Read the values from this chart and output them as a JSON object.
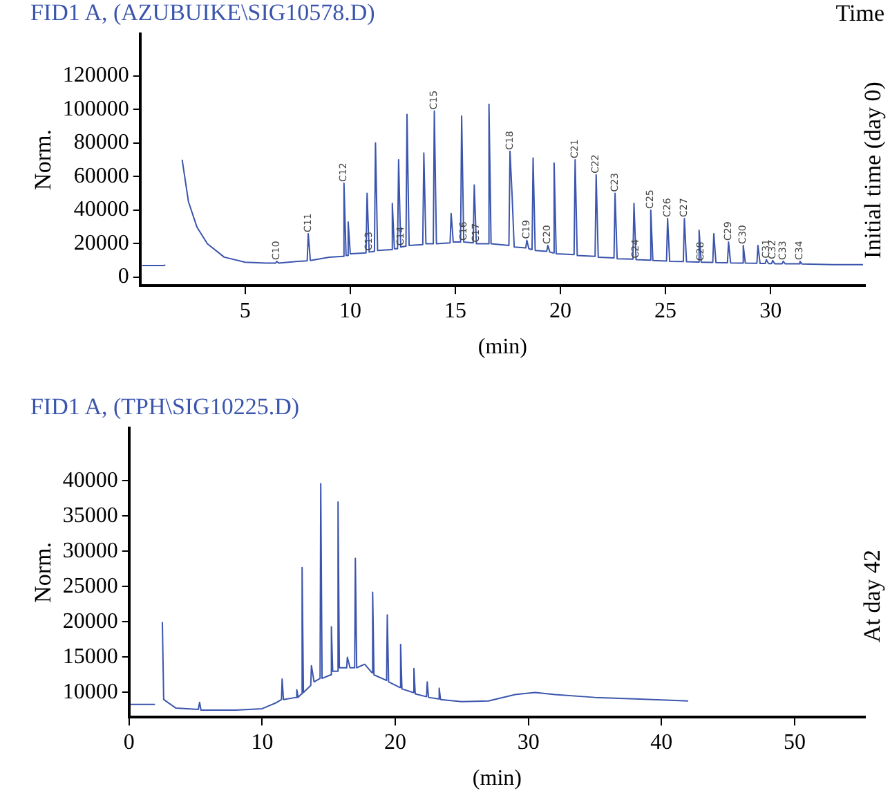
{
  "chart_data": [
    {
      "type": "line",
      "title": "FID1 A, (AZUBUIKE\\SIG10578.D)",
      "xlabel": "(min)",
      "ylabel": "Norm.",
      "xlim": [
        0,
        34.5
      ],
      "ylim": [
        -5000,
        145000
      ],
      "xticks": [
        5,
        10,
        15,
        20,
        25,
        30
      ],
      "yticks": [
        0,
        20000,
        40000,
        60000,
        80000,
        100000,
        120000
      ],
      "grid": false,
      "legend": false,
      "x": [
        0.1,
        1.1,
        1.2,
        1.3,
        1.9,
        2.0,
        2.3,
        2.7,
        3.2,
        4,
        5,
        6,
        6.45,
        6.5,
        6.6,
        7.5,
        7.95,
        8.0,
        8.1,
        9.0,
        9.65,
        9.7,
        9.8,
        9.85,
        9.9,
        10.0,
        10.75,
        10.8,
        10.9,
        11.15,
        11.2,
        11.3,
        11.95,
        12.0,
        12.1,
        12.25,
        12.3,
        12.4,
        12.65,
        12.7,
        12.8,
        13.45,
        13.5,
        13.6,
        13.95,
        14.0,
        14.1,
        14.75,
        14.8,
        14.9,
        15.25,
        15.3,
        15.4,
        15.85,
        15.9,
        16.0,
        16.55,
        16.6,
        16.7,
        17.55,
        17.6,
        17.7,
        17.8,
        18.35,
        18.4,
        18.5,
        18.65,
        18.7,
        18.8,
        19.35,
        19.4,
        19.5,
        19.65,
        19.7,
        19.8,
        20.65,
        20.7,
        20.8,
        21.65,
        21.7,
        21.8,
        22.55,
        22.6,
        22.7,
        23.45,
        23.5,
        23.6,
        24.25,
        24.3,
        24.4,
        25.05,
        25.1,
        25.2,
        25.85,
        25.9,
        26.0,
        26.55,
        26.6,
        26.7,
        27.25,
        27.3,
        27.4,
        27.95,
        28.0,
        28.1,
        28.65,
        28.7,
        28.8,
        29.35,
        29.4,
        29.5,
        29.75,
        29.8,
        29.9,
        30.05,
        30.1,
        30.2,
        30.55,
        30.6,
        30.7,
        31.35,
        31.4,
        31.5,
        33,
        34.4
      ],
      "series": [
        {
          "color": "#3b55ad",
          "values": [
            7000,
            7000,
            7200,
            null,
            null,
            70000,
            45000,
            30000,
            20000,
            12000,
            9000,
            8500,
            8500,
            9500,
            8500,
            9500,
            9800,
            26000,
            10000,
            12000,
            12500,
            56000,
            13000,
            13000,
            33000,
            14000,
            14500,
            50000,
            15000,
            15500,
            80000,
            16000,
            16500,
            44000,
            17000,
            17000,
            70000,
            18000,
            18500,
            97000,
            19000,
            19500,
            74000,
            20000,
            20000,
            99000,
            20000,
            20500,
            38000,
            21000,
            21000,
            96000,
            21000,
            20500,
            55000,
            20000,
            20000,
            103000,
            20000,
            19000,
            75000,
            49000,
            18000,
            17500,
            22000,
            17000,
            16500,
            71000,
            16000,
            15500,
            19000,
            15000,
            14500,
            68000,
            14000,
            13500,
            70000,
            13000,
            12500,
            61000,
            12000,
            11500,
            50000,
            11000,
            10800,
            44000,
            10500,
            10200,
            40000,
            10000,
            9700,
            35000,
            9500,
            9400,
            35000,
            9300,
            9100,
            28000,
            9000,
            8900,
            26000,
            8800,
            8700,
            21000,
            8600,
            8500,
            19000,
            8500,
            8400,
            19000,
            8300,
            8300,
            10500,
            8200,
            8200,
            10000,
            8100,
            8100,
            9500,
            8000,
            8000,
            9500,
            7900,
            7500,
            7500
          ]
        }
      ],
      "annotations": [
        "Time",
        "Initial time (day 0)",
        {
          "text": "C10",
          "x": 6.5,
          "y": 9500
        },
        {
          "text": "C11",
          "x": 8.0,
          "y": 26000
        },
        {
          "text": "C12",
          "x": 9.7,
          "y": 56000
        },
        {
          "text": "C13",
          "x": 10.9,
          "y": 15000
        },
        {
          "text": "C14",
          "x": 12.4,
          "y": 18000
        },
        {
          "text": "C15",
          "x": 14.0,
          "y": 99000
        },
        {
          "text": "C16",
          "x": 15.4,
          "y": 21000
        },
        {
          "text": "C17",
          "x": 16.0,
          "y": 20000
        },
        {
          "text": "C18",
          "x": 17.6,
          "y": 75000
        },
        {
          "text": "C19",
          "x": 18.4,
          "y": 22000
        },
        {
          "text": "C20",
          "x": 19.4,
          "y": 19000
        },
        {
          "text": "C21",
          "x": 20.7,
          "y": 70000
        },
        {
          "text": "C22",
          "x": 21.7,
          "y": 61000
        },
        {
          "text": "C23",
          "x": 22.6,
          "y": 50000
        },
        {
          "text": "C24",
          "x": 23.6,
          "y": 10500
        },
        {
          "text": "C25",
          "x": 24.3,
          "y": 40000
        },
        {
          "text": "C26",
          "x": 25.1,
          "y": 35000
        },
        {
          "text": "C27",
          "x": 25.9,
          "y": 35000
        },
        {
          "text": "C28",
          "x": 26.7,
          "y": 9000
        },
        {
          "text": "C29",
          "x": 28.0,
          "y": 21000
        },
        {
          "text": "C30",
          "x": 28.7,
          "y": 19000
        },
        {
          "text": "C31",
          "x": 29.8,
          "y": 10500
        },
        {
          "text": "C32",
          "x": 30.1,
          "y": 10000
        },
        {
          "text": "C33",
          "x": 30.6,
          "y": 9500
        },
        {
          "text": "C34",
          "x": 31.4,
          "y": 9500
        }
      ]
    },
    {
      "type": "line",
      "title": "FID1 A, (TPH\\SIG10225.D)",
      "xlabel": "(min)",
      "ylabel": "Norm.",
      "xlim": [
        0,
        55.3
      ],
      "ylim": [
        6500,
        47500
      ],
      "xticks": [
        0,
        10,
        20,
        30,
        40,
        50
      ],
      "yticks": [
        10000,
        15000,
        20000,
        25000,
        30000,
        35000,
        40000
      ],
      "grid": false,
      "legend": false,
      "x": [
        0.1,
        1.95,
        2.2,
        2.5,
        2.6,
        3.5,
        5.2,
        5.3,
        5.4,
        8,
        10,
        11,
        11.45,
        11.5,
        11.6,
        12.55,
        12.6,
        12.7,
        12.95,
        13.0,
        13.1,
        13.65,
        13.7,
        13.9,
        14.35,
        14.4,
        14.5,
        15.15,
        15.2,
        15.3,
        15.65,
        15.7,
        15.8,
        16.35,
        16.4,
        16.6,
        16.95,
        17.0,
        17.1,
        17.7,
        18.25,
        18.3,
        18.4,
        19.35,
        19.4,
        19.5,
        20.35,
        20.4,
        20.5,
        21.35,
        21.4,
        21.5,
        22.35,
        22.4,
        22.5,
        23.25,
        23.3,
        23.4,
        25,
        27,
        29,
        30.5,
        32,
        35,
        38,
        42
      ],
      "series": [
        {
          "color": "#3b55ad",
          "values": [
            8300,
            8300,
            null,
            20000,
            9000,
            7800,
            7600,
            8600,
            7500,
            7500,
            7700,
            8500,
            9000,
            11900,
            9000,
            9300,
            10400,
            9300,
            9800,
            27700,
            10000,
            11000,
            13800,
            11500,
            12000,
            39600,
            12000,
            12500,
            19300,
            13000,
            13000,
            37000,
            13500,
            13500,
            15000,
            13500,
            13500,
            29000,
            13500,
            14000,
            12800,
            24200,
            12500,
            11700,
            21000,
            11500,
            10700,
            16800,
            10500,
            10000,
            13400,
            9800,
            9400,
            11500,
            9300,
            9100,
            10600,
            9000,
            8700,
            8800,
            9700,
            10000,
            9700,
            9300,
            9100,
            8800
          ]
        }
      ],
      "annotations": [
        "At day 42"
      ]
    }
  ]
}
